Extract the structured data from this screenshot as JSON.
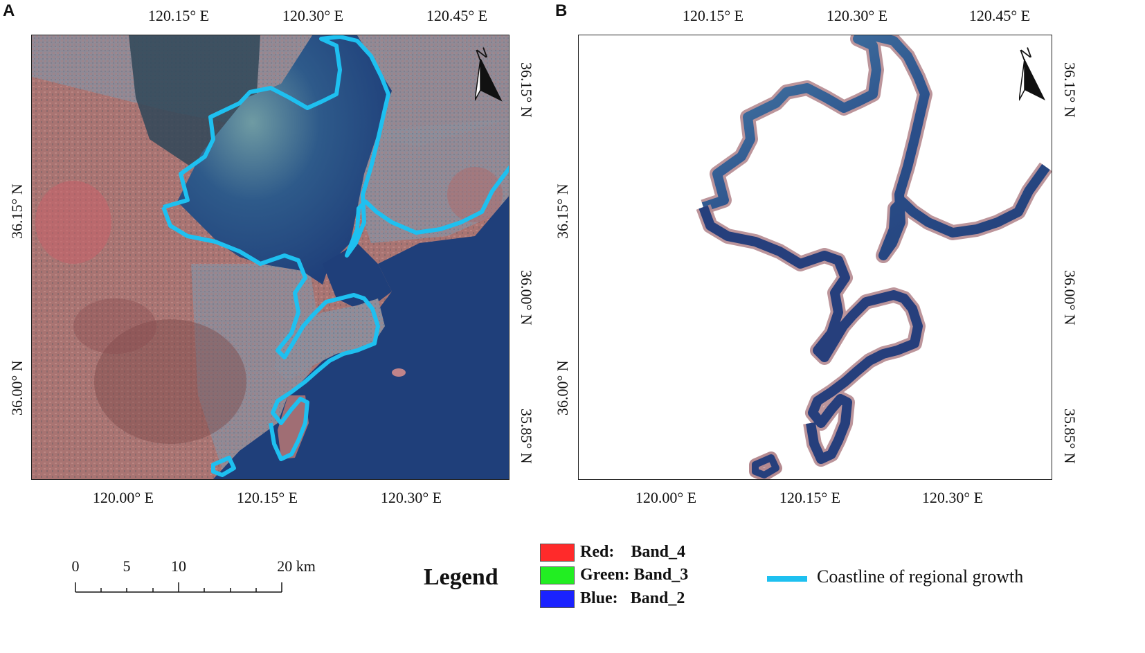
{
  "panels": [
    {
      "letter": "A",
      "top_ticks": [
        "120.15° E",
        "120.30° E",
        "120.45° E"
      ],
      "bottom_ticks": [
        "120.00° E",
        "120.15° E",
        "120.30° E"
      ],
      "left_ticks": [
        "36.15° N",
        "36.00° N"
      ],
      "right_ticks": [
        "36.15° N",
        "36.00° N",
        "35.85° N"
      ],
      "north_label": "N"
    },
    {
      "letter": "B",
      "top_ticks": [
        "120.15° E",
        "120.30° E",
        "120.45° E"
      ],
      "bottom_ticks": [
        "120.00° E",
        "120.15° E",
        "120.30° E"
      ],
      "left_ticks": [
        "36.15° N",
        "36.00° N"
      ],
      "right_ticks": [
        "36.15° N",
        "36.00° N",
        "35.85° N"
      ],
      "north_label": "N"
    }
  ],
  "scale_bar": {
    "labels": [
      "0",
      "5",
      "10",
      "20 km"
    ]
  },
  "legend": {
    "title": "Legend",
    "bands": [
      {
        "label": "Red:    Band_4",
        "color": "#ff2a2a"
      },
      {
        "label": "Green: Band_3",
        "color": "#22ee22"
      },
      {
        "label": "Blue:   Band_2",
        "color": "#1a22ff"
      }
    ],
    "coastline": {
      "label": "Coastline of regional growth",
      "color": "#1ec0f0"
    }
  },
  "colors": {
    "sea": "#1f3f7a",
    "land": "#a4706e",
    "urban": "#8b8e9e",
    "coastline": "#1ec0f0"
  }
}
